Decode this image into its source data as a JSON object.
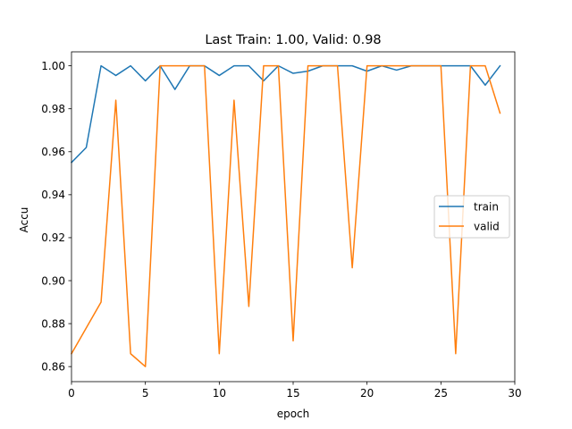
{
  "chart_data": {
    "type": "line",
    "title": "Last Train: 1.00, Valid: 0.98",
    "xlabel": "epoch",
    "ylabel": "Accu",
    "xlim": [
      0,
      30
    ],
    "ylim": [
      0.853,
      1.0065
    ],
    "xticks": [
      "0",
      "5",
      "10",
      "15",
      "20",
      "25",
      "30"
    ],
    "yticks": [
      "0.86",
      "0.88",
      "0.90",
      "0.92",
      "0.94",
      "0.96",
      "0.98",
      "1.00"
    ],
    "x": [
      0,
      1,
      2,
      3,
      4,
      5,
      6,
      7,
      8,
      9,
      10,
      11,
      12,
      13,
      14,
      15,
      16,
      17,
      18,
      19,
      20,
      21,
      22,
      23,
      24,
      25,
      26,
      27,
      28,
      29
    ],
    "series": [
      {
        "name": "train",
        "color": "#1f77b4",
        "values": [
          0.955,
          0.962,
          1.0,
          0.9955,
          1.0,
          0.993,
          1.0,
          0.989,
          1.0,
          1.0,
          0.9955,
          1.0,
          1.0,
          0.993,
          1.0,
          0.9965,
          0.9975,
          1.0,
          1.0,
          1.0,
          0.9975,
          1.0,
          0.998,
          1.0,
          1.0,
          1.0,
          1.0,
          1.0,
          0.991,
          1.0
        ]
      },
      {
        "name": "valid",
        "color": "#ff7f0e",
        "values": [
          0.866,
          0.878,
          0.89,
          0.984,
          0.866,
          0.86,
          1.0,
          1.0,
          1.0,
          1.0,
          0.866,
          0.984,
          0.888,
          1.0,
          1.0,
          0.872,
          1.0,
          1.0,
          1.0,
          0.906,
          1.0,
          1.0,
          1.0,
          1.0,
          1.0,
          1.0,
          0.866,
          1.0,
          1.0,
          0.978
        ]
      }
    ],
    "legend_position": "center-right",
    "grid": false
  }
}
